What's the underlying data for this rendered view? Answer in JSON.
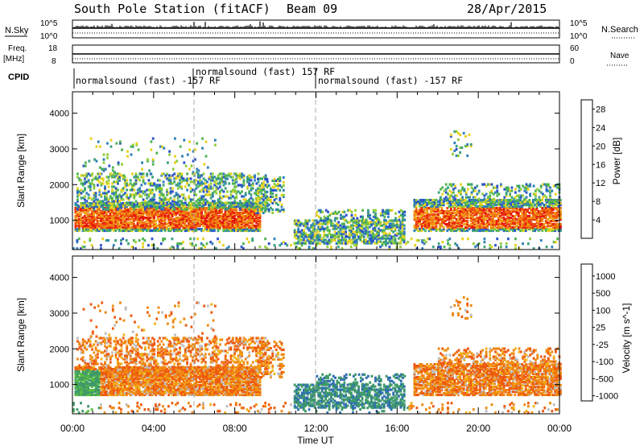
{
  "header": {
    "station": "South Pole Station (fitACF)",
    "beam": "Beam 09",
    "date": "28/Apr/2015"
  },
  "top_panels": {
    "nsky_label": "N.Sky",
    "nsky_tick_top": "10^5",
    "nsky_tick_bottom": "10^0",
    "nsky_right_top": "10^5",
    "nsky_right_bottom": "10^0",
    "nsearch_label": "N.Search",
    "freq_label": "Freq.",
    "freq_unit": "[MHz]",
    "freq_tick_top": "18",
    "freq_tick_bottom": "8",
    "nave_tick_top": "60",
    "nave_tick_bottom": "0",
    "nave_label": "Nave",
    "cpid_label": "CPID",
    "cpid_segments": [
      {
        "label": "normalsound (fast) -157 RF"
      },
      {
        "label": "normalsound (fast) 157 RF"
      },
      {
        "label": "normalsound (fast) -157 RF"
      }
    ]
  },
  "chart_data": [
    {
      "type": "heatmap",
      "name": "power",
      "ylabel": "Slant Range [km]",
      "xlabel": "Time UT",
      "x_ticks": [
        "00:00",
        "04:00",
        "08:00",
        "12:00",
        "16:00",
        "20:00",
        "00:00"
      ],
      "y_ticks": [
        "1000",
        "2000",
        "3000",
        "4000"
      ],
      "xlim_hours": [
        0,
        24
      ],
      "ylim_km": [
        180,
        4600
      ],
      "colorbar": {
        "label": "Power [dB]",
        "ticks": [
          "4",
          "8",
          "12",
          "16",
          "20",
          "24",
          "28"
        ],
        "colors": [
          "#1f1fff",
          "#2a52c9",
          "#2f7fb8",
          "#3aa07a",
          "#4fb34f",
          "#8fce3a",
          "#e8d21f",
          "#f2a21a",
          "#f07a12",
          "#ee4a0f",
          "#e41a0a"
        ]
      }
    },
    {
      "type": "heatmap",
      "name": "velocity",
      "ylabel": "Slant Range [km]",
      "xlabel": "Time UT",
      "x_ticks": [
        "00:00",
        "04:00",
        "08:00",
        "12:00",
        "16:00",
        "20:00",
        "00:00"
      ],
      "y_ticks": [
        "1000",
        "2000",
        "3000",
        "4000"
      ],
      "xlim_hours": [
        0,
        24
      ],
      "ylim_km": [
        180,
        4600
      ],
      "colorbar": {
        "label": "Velocity [m s^-1]",
        "ticks": [
          "1000",
          "500",
          "100",
          "25",
          "-25",
          "-100",
          "-500",
          "-1000"
        ],
        "colors": [
          "#1f3fbf",
          "#2f6fb0",
          "#3f9a6a",
          "#5bbf3f",
          "#bdbdbd",
          "#f2b21a",
          "#f08a12",
          "#ee5a10",
          "#e41a0a"
        ]
      }
    }
  ],
  "x_axis_title": "Time UT"
}
